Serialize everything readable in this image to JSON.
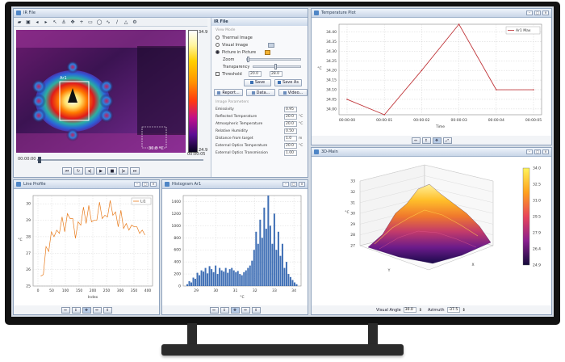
{
  "windows": {
    "ir": {
      "title": "IR File"
    },
    "panel": {
      "title": "IR File",
      "section_view": "View Mode",
      "modes": [
        "Thermal Image",
        "Visual Image",
        "Picture in Picture"
      ],
      "selected_mode": 2,
      "zoom_label": "Zoom",
      "transparency_label": "Transparency",
      "threshold_label": "Threshold",
      "threshold_low": "20.0",
      "threshold_high": "28.0",
      "save_label": "Save",
      "save_as_label": "Save As",
      "report_label": "Report...",
      "data_label": "Data...",
      "video_label": "Video...",
      "section_params": "Image Parameters",
      "params": [
        {
          "label": "Emissivity",
          "value": "0.95",
          "unit": ""
        },
        {
          "label": "Reflected Temperature",
          "value": "20.0",
          "unit": "°C"
        },
        {
          "label": "Atmospheric Temperature",
          "value": "20.0",
          "unit": "°C"
        },
        {
          "label": "Relative Humidity",
          "value": "0.50",
          "unit": ""
        },
        {
          "label": "Distance from target",
          "value": "1.0",
          "unit": "m"
        },
        {
          "label": "External Optics Temperature",
          "value": "20.0",
          "unit": "°C"
        },
        {
          "label": "External Optics Transmission",
          "value": "1.00",
          "unit": ""
        }
      ]
    },
    "temp_plot": {
      "title": "Temperature Plot"
    },
    "line_profile": {
      "title": "Line Profile"
    },
    "histogram": {
      "title": "Histogram Ar1"
    },
    "three_d": {
      "title": "3D-Main"
    }
  },
  "thermal": {
    "scale_max": "34.9",
    "scale_min": "24.9",
    "roi_label": "Ar1",
    "cursor_label": "30.8 °C",
    "time_start": "00:00:00",
    "time_end": "00:00:05"
  },
  "three_d_controls": {
    "visual_angle_label": "Visual Angle",
    "visual_angle_value": "30.0",
    "azimuth_label": "Azimuth",
    "azimuth_value": "-37.5"
  },
  "colors": {
    "chrome": "#121212",
    "window_border": "#8fa3bd",
    "line_profile": "#e87b1c",
    "temp_plot": "#c0373b",
    "histogram": "#3f6fb5"
  },
  "chart_data": [
    {
      "type": "line",
      "name_ref": "temperature-plot",
      "x": [
        "00:00:00",
        "00:00:01",
        "00:00:02",
        "00:00:03",
        "00:00:04",
        "00:00:05"
      ],
      "series": [
        {
          "name": "Ar1 Max",
          "values": [
            34.05,
            33.97,
            34.2,
            34.44,
            34.1,
            34.1
          ]
        }
      ],
      "xlabel": "Time",
      "ylabel": "°C",
      "yticks": [
        "34.00",
        "34.05",
        "34.10",
        "34.15",
        "34.20",
        "34.25",
        "34.30",
        "34.35",
        "34.40"
      ],
      "ylim": [
        33.97,
        34.44
      ]
    },
    {
      "type": "line",
      "name_ref": "line-profile",
      "series": [
        {
          "name": "Li1",
          "values": [
            25.3,
            26.0,
            27.1,
            27.4,
            28.0,
            28.3,
            28.1,
            28.5,
            28.9,
            28.6,
            29.1,
            29.4,
            28.8,
            28.2,
            28.6,
            29.0,
            29.5,
            29.1,
            29.6,
            29.2,
            28.7,
            29.3,
            29.8,
            29.4,
            29.0,
            29.5,
            29.9,
            29.6,
            29.2,
            28.9,
            29.3,
            28.8,
            28.5,
            28.7,
            28.4,
            28.9,
            28.3,
            28.5,
            28.1,
            28.4
          ]
        }
      ],
      "x_range": [
        0,
        400
      ],
      "xticks": [
        "0",
        "50",
        "100",
        "150",
        "200",
        "250",
        "300",
        "350",
        "400"
      ],
      "yticks": [
        "25",
        "26",
        "27",
        "28",
        "29",
        "30"
      ],
      "ylim": [
        25,
        30.5
      ],
      "xlabel": "Index",
      "ylabel": "°C"
    },
    {
      "type": "bar",
      "name_ref": "histogram",
      "values": [
        30,
        80,
        60,
        140,
        120,
        220,
        180,
        260,
        240,
        300,
        210,
        330,
        280,
        230,
        340,
        200,
        300,
        260,
        240,
        300,
        220,
        280,
        300,
        260,
        230,
        250,
        200,
        180,
        230,
        260,
        300,
        340,
        420,
        600,
        900,
        700,
        1100,
        800,
        1300,
        950,
        1500,
        1000,
        700,
        1200,
        600,
        900,
        500,
        700,
        300,
        400,
        200,
        150,
        100,
        60,
        30
      ],
      "x_range": [
        28.5,
        34.2
      ],
      "xticks": [
        "29",
        "30",
        "31",
        "32",
        "33",
        "34"
      ],
      "yticks": [
        "0",
        "200",
        "400",
        "600",
        "800",
        "1000",
        "1200",
        "1400"
      ],
      "ylim": [
        0,
        1500
      ],
      "xlabel": "°C"
    },
    {
      "type": "surface",
      "name_ref": "3d-surface",
      "colorbar_ticks": [
        "34.0",
        "32.5",
        "31.0",
        "29.5",
        "27.9",
        "26.4",
        "24.9"
      ],
      "zticks": [
        "27",
        "28",
        "29",
        "30",
        "31",
        "32",
        "33"
      ],
      "xlabel": "X",
      "ylabel": "Y",
      "zlabel": "°C"
    }
  ]
}
